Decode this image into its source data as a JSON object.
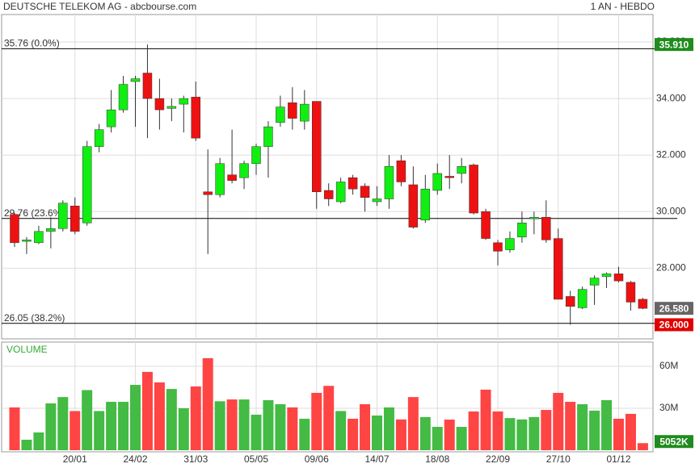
{
  "chart_data": {
    "type": "candlestick",
    "title": "DEUTSCHE TELEKOM AG - abcbourse.com",
    "subtitle": "1 AN - HEBDO",
    "categories": [
      null,
      null,
      null,
      null,
      null,
      "20/01",
      null,
      null,
      null,
      null,
      "24/02",
      null,
      null,
      null,
      null,
      "31/03",
      null,
      null,
      null,
      null,
      "05/05",
      null,
      null,
      null,
      null,
      "09/06",
      null,
      null,
      null,
      null,
      "14/07",
      null,
      null,
      null,
      null,
      "18/08",
      null,
      null,
      null,
      null,
      "22/09",
      null,
      null,
      null,
      null,
      "27/10",
      null,
      null,
      null,
      null,
      "01/12",
      null,
      null
    ],
    "open": [
      29.9,
      28.95,
      28.9,
      29.3,
      29.4,
      30.2,
      29.6,
      32.3,
      33.0,
      33.6,
      34.6,
      34.9,
      34.0,
      33.65,
      33.8,
      34.05,
      30.7,
      30.6,
      31.3,
      31.2,
      31.7,
      32.3,
      33.15,
      33.85,
      33.2,
      33.9,
      30.75,
      30.35,
      31.2,
      30.9,
      30.35,
      30.45,
      31.8,
      30.95,
      29.7,
      30.75,
      31.25,
      31.35,
      31.65,
      30.0,
      28.9,
      28.65,
      29.1,
      29.75,
      29.8,
      29.05,
      27.0,
      26.6,
      27.4,
      27.7,
      27.8,
      27.5,
      26.9
    ],
    "high": [
      29.95,
      29.1,
      29.5,
      29.8,
      30.4,
      30.5,
      32.5,
      33.1,
      34.3,
      34.8,
      34.8,
      35.91,
      34.7,
      34.0,
      34.1,
      34.6,
      32.2,
      31.9,
      32.9,
      31.8,
      32.4,
      33.2,
      34.1,
      34.4,
      34.3,
      33.9,
      31.0,
      31.2,
      31.3,
      31.0,
      30.9,
      32.0,
      32.0,
      31.6,
      31.3,
      31.7,
      32.0,
      31.9,
      31.7,
      30.1,
      29.0,
      29.3,
      30.0,
      30.0,
      30.4,
      29.4,
      27.2,
      27.35,
      27.75,
      27.85,
      28.05,
      27.55,
      26.95
    ],
    "low": [
      28.75,
      28.5,
      28.85,
      28.7,
      29.3,
      29.2,
      29.5,
      32.1,
      32.8,
      33.5,
      33.0,
      32.6,
      32.9,
      33.2,
      32.8,
      32.5,
      28.5,
      30.5,
      31.0,
      30.8,
      31.3,
      31.2,
      33.0,
      32.9,
      32.9,
      30.1,
      30.2,
      30.3,
      30.6,
      30.0,
      30.2,
      30.1,
      30.9,
      29.4,
      29.6,
      30.6,
      30.8,
      31.0,
      29.9,
      29.0,
      28.1,
      28.55,
      28.9,
      29.2,
      28.9,
      26.9,
      26.0,
      26.55,
      26.7,
      27.3,
      27.5,
      26.5,
      26.55
    ],
    "close": [
      28.9,
      29.0,
      29.3,
      29.4,
      30.3,
      29.3,
      32.3,
      32.9,
      33.6,
      34.5,
      34.7,
      34.0,
      33.6,
      33.72,
      34.0,
      32.6,
      30.6,
      31.7,
      31.1,
      31.7,
      32.3,
      33.0,
      33.7,
      33.3,
      33.8,
      30.7,
      30.45,
      31.05,
      30.8,
      30.5,
      30.45,
      31.6,
      31.05,
      29.45,
      30.8,
      31.35,
      31.2,
      31.6,
      29.95,
      29.05,
      28.6,
      29.05,
      29.6,
      29.8,
      29.0,
      26.9,
      26.65,
      27.25,
      27.65,
      27.8,
      27.55,
      26.8,
      26.58
    ],
    "up_color": "#11ee11",
    "down_color": "#ee1111",
    "ylim": [
      25.5,
      36.97
    ],
    "yticks": [
      {
        "value": 28,
        "label": "28.000"
      },
      {
        "value": 30,
        "label": "30.000"
      },
      {
        "value": 32,
        "label": "32.000"
      },
      {
        "value": 34,
        "label": "34.000"
      },
      {
        "value": 36,
        "label": "36.000"
      }
    ],
    "grid": true,
    "levels": [
      {
        "value": 35.76,
        "label": "35.76  (0.0%)"
      },
      {
        "value": 29.76,
        "label": "29.76  (23.6%)"
      },
      {
        "value": 26.05,
        "label": "26.05  (38.2%)"
      }
    ],
    "markers": [
      {
        "value": 35.91,
        "label": "35.910",
        "color": "#1e8c1e"
      },
      {
        "value": 26.58,
        "label": "26.580",
        "color": "#666666"
      },
      {
        "value": 26.0,
        "label": "26.000",
        "color": "#e00000"
      }
    ],
    "volume": {
      "title": "VOLUME",
      "values": [
        30.6,
        7.5,
        12.7,
        33.5,
        38,
        28,
        43,
        28,
        34.6,
        34.6,
        46.7,
        56,
        48.5,
        43.8,
        30,
        45.6,
        65.8,
        35,
        36.3,
        36.3,
        25.4,
        35.8,
        32.9,
        30.6,
        22.5,
        41,
        46,
        28,
        22.5,
        32.9,
        24.8,
        30.6,
        22,
        38,
        23.7,
        16.7,
        21.9,
        16.7,
        27.7,
        43.3,
        27.7,
        23,
        22,
        23.7,
        28.8,
        41,
        34.6,
        32.9,
        28.3,
        35.8,
        22.5,
        26,
        5.052
      ],
      "last_label": "5052K",
      "up_color": "#44bb44",
      "down_color": "#ff4444",
      "tag_color": "#1e8c1e",
      "ylim": [
        0,
        77.3
      ],
      "yticks": [
        {
          "value": 30,
          "label": "30M"
        },
        {
          "value": 60,
          "label": "60M"
        }
      ]
    }
  }
}
